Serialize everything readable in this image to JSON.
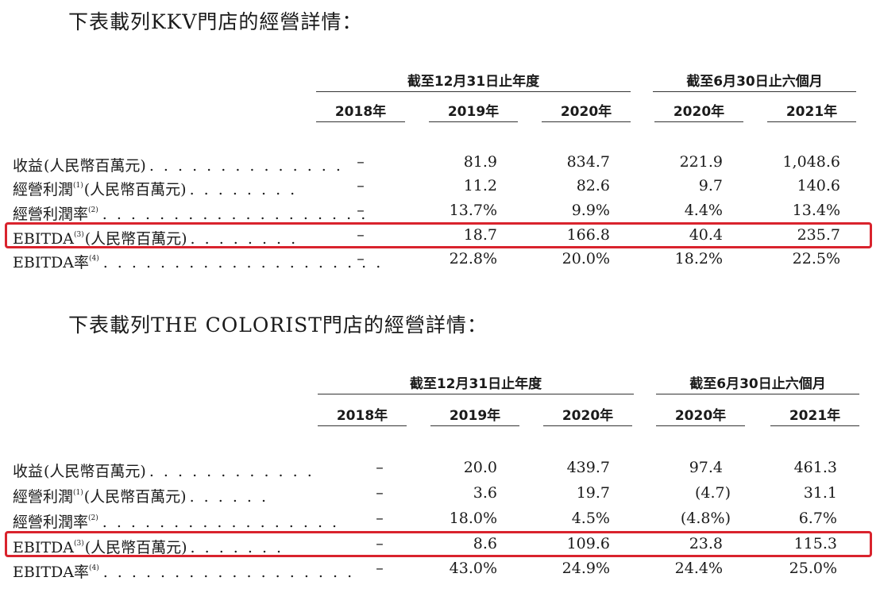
{
  "tables": [
    {
      "title": "下表載列KKV門店的經營詳情：",
      "group_fy": "截至12月31日止年度",
      "group_hy": "截至6月30日止六個月",
      "years": [
        "2018年",
        "2019年",
        "2020年",
        "2020年",
        "2021年"
      ],
      "rows": [
        {
          "label": "收益",
          "note": "",
          "unit": "(人民幣百萬元)",
          "leader": ". . . . . . . . . . . . . .",
          "values": [
            "–",
            "81.9",
            "834.7",
            "221.9",
            "1,048.6"
          ],
          "highlight": false
        },
        {
          "label": "經營利潤",
          "note": "(1)",
          "unit": "(人民幣百萬元)",
          "leader": ". . . . . . . .",
          "values": [
            "–",
            "11.2",
            "82.6",
            "9.7",
            "140.6"
          ],
          "highlight": false
        },
        {
          "label": "經營利潤率",
          "note": "(2)",
          "unit": "",
          "leader": ". . . . . . . . . . . . . . . . . . .",
          "values": [
            "–",
            "13.7%",
            "9.9%",
            "4.4%",
            "13.4%"
          ],
          "highlight": false
        },
        {
          "label": "EBITDA",
          "note": "(3)",
          "unit": "(人民幣百萬元)",
          "leader": ". . . . . . . .",
          "values": [
            "–",
            "18.7",
            "166.8",
            "40.4",
            "235.7"
          ],
          "highlight": true
        },
        {
          "label": "EBITDA率",
          "note": "(4)",
          "unit": "",
          "leader": ". . . . . . . . . . . . . . . . . . . .",
          "values": [
            "–",
            "22.8%",
            "20.0%",
            "18.2%",
            "22.5%"
          ],
          "highlight": false
        }
      ]
    },
    {
      "title": "下表載列THE COLORIST門店的經營詳情：",
      "group_fy": "截至12月31日止年度",
      "group_hy": "截至6月30日止六個月",
      "years": [
        "2018年",
        "2019年",
        "2020年",
        "2020年",
        "2021年"
      ],
      "rows": [
        {
          "label": "收益",
          "note": "",
          "unit": "(人民幣百萬元)",
          "leader": ". . . . . . . . . . . .",
          "values": [
            "–",
            "20.0",
            "439.7",
            "97.4",
            "461.3"
          ],
          "highlight": false
        },
        {
          "label": "經營利潤",
          "note": "(1)",
          "unit": "(人民幣百萬元)",
          "leader": ". . . . . .",
          "values": [
            "–",
            "3.6",
            "19.7",
            "(4.7)",
            "31.1"
          ],
          "highlight": false
        },
        {
          "label": "經營利潤率",
          "note": "(2)",
          "unit": "",
          "leader": ". . . . . . . . . . . . . . . . .",
          "values": [
            "–",
            "18.0%",
            "4.5%",
            "(4.8%)",
            "6.7%"
          ],
          "highlight": false
        },
        {
          "label": "EBITDA",
          "note": "(3)",
          "unit": "(人民幣百萬元)",
          "leader": ". . . . . . .",
          "values": [
            "–",
            "8.6",
            "109.6",
            "23.8",
            "115.3"
          ],
          "highlight": true
        },
        {
          "label": "EBITDA率",
          "note": "(4)",
          "unit": "",
          "leader": ". . . . . . . . . . . . . . . . . .",
          "values": [
            "–",
            "43.0%",
            "24.9%",
            "24.4%",
            "25.0%"
          ],
          "highlight": false
        }
      ]
    }
  ]
}
